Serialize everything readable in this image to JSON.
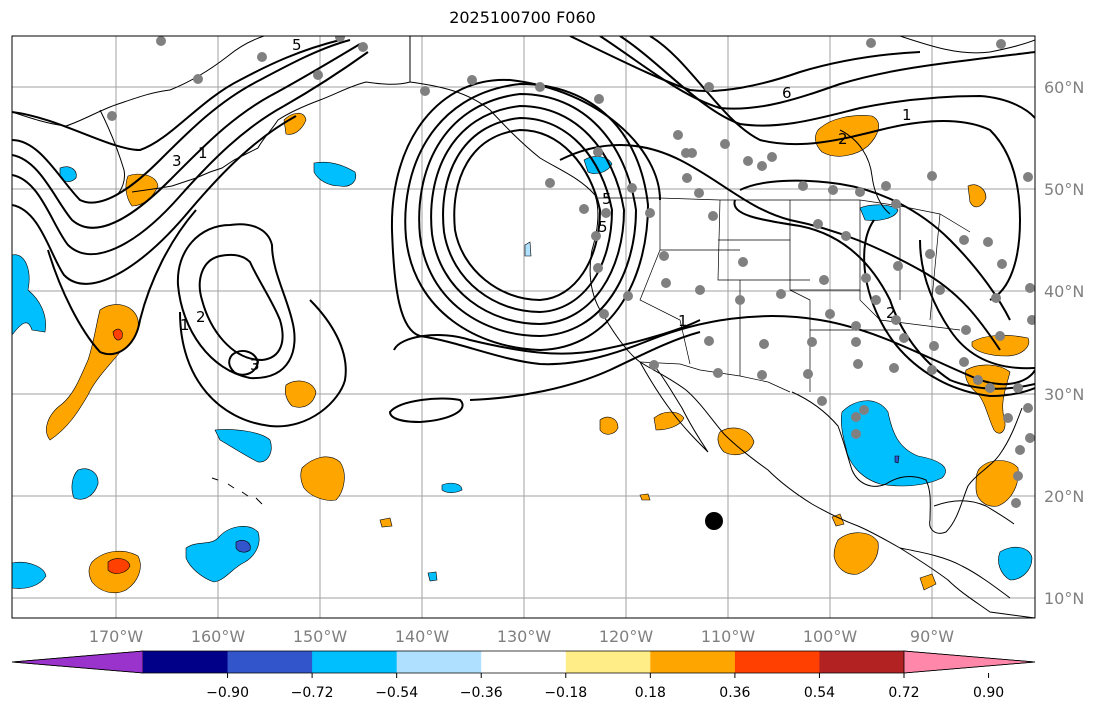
{
  "title": "2025100700 F060",
  "map": {
    "lat_labels": [
      "60°N",
      "50°N",
      "40°N",
      "30°N",
      "20°N",
      "10°N"
    ],
    "lon_labels": [
      "170°W",
      "160°W",
      "150°W",
      "140°W",
      "130°W",
      "120°W",
      "110°W",
      "100°W",
      "90°W"
    ],
    "contour_labels": [
      "5",
      "1",
      "3",
      "2",
      "1",
      "3",
      "5",
      "1",
      "5",
      "2",
      "6",
      "1",
      "2"
    ],
    "colors": {
      "land_outline": "#000000",
      "grid": "#a0a0a0",
      "contour": "#000000",
      "station": "#808080",
      "marker": "#000000"
    }
  },
  "colorbar": {
    "tick_labels": [
      "−0.90",
      "−0.72",
      "−0.54",
      "−0.36",
      "−0.18",
      "0.18",
      "0.36",
      "0.54",
      "0.72",
      "0.90"
    ],
    "colors": [
      "#9933cc",
      "#000088",
      "#3355cc",
      "#00bfff",
      "#b0e0ff",
      "#ffffff",
      "#ffee88",
      "#ffa500",
      "#ff4000",
      "#b22222",
      "#ff88aa"
    ]
  }
}
